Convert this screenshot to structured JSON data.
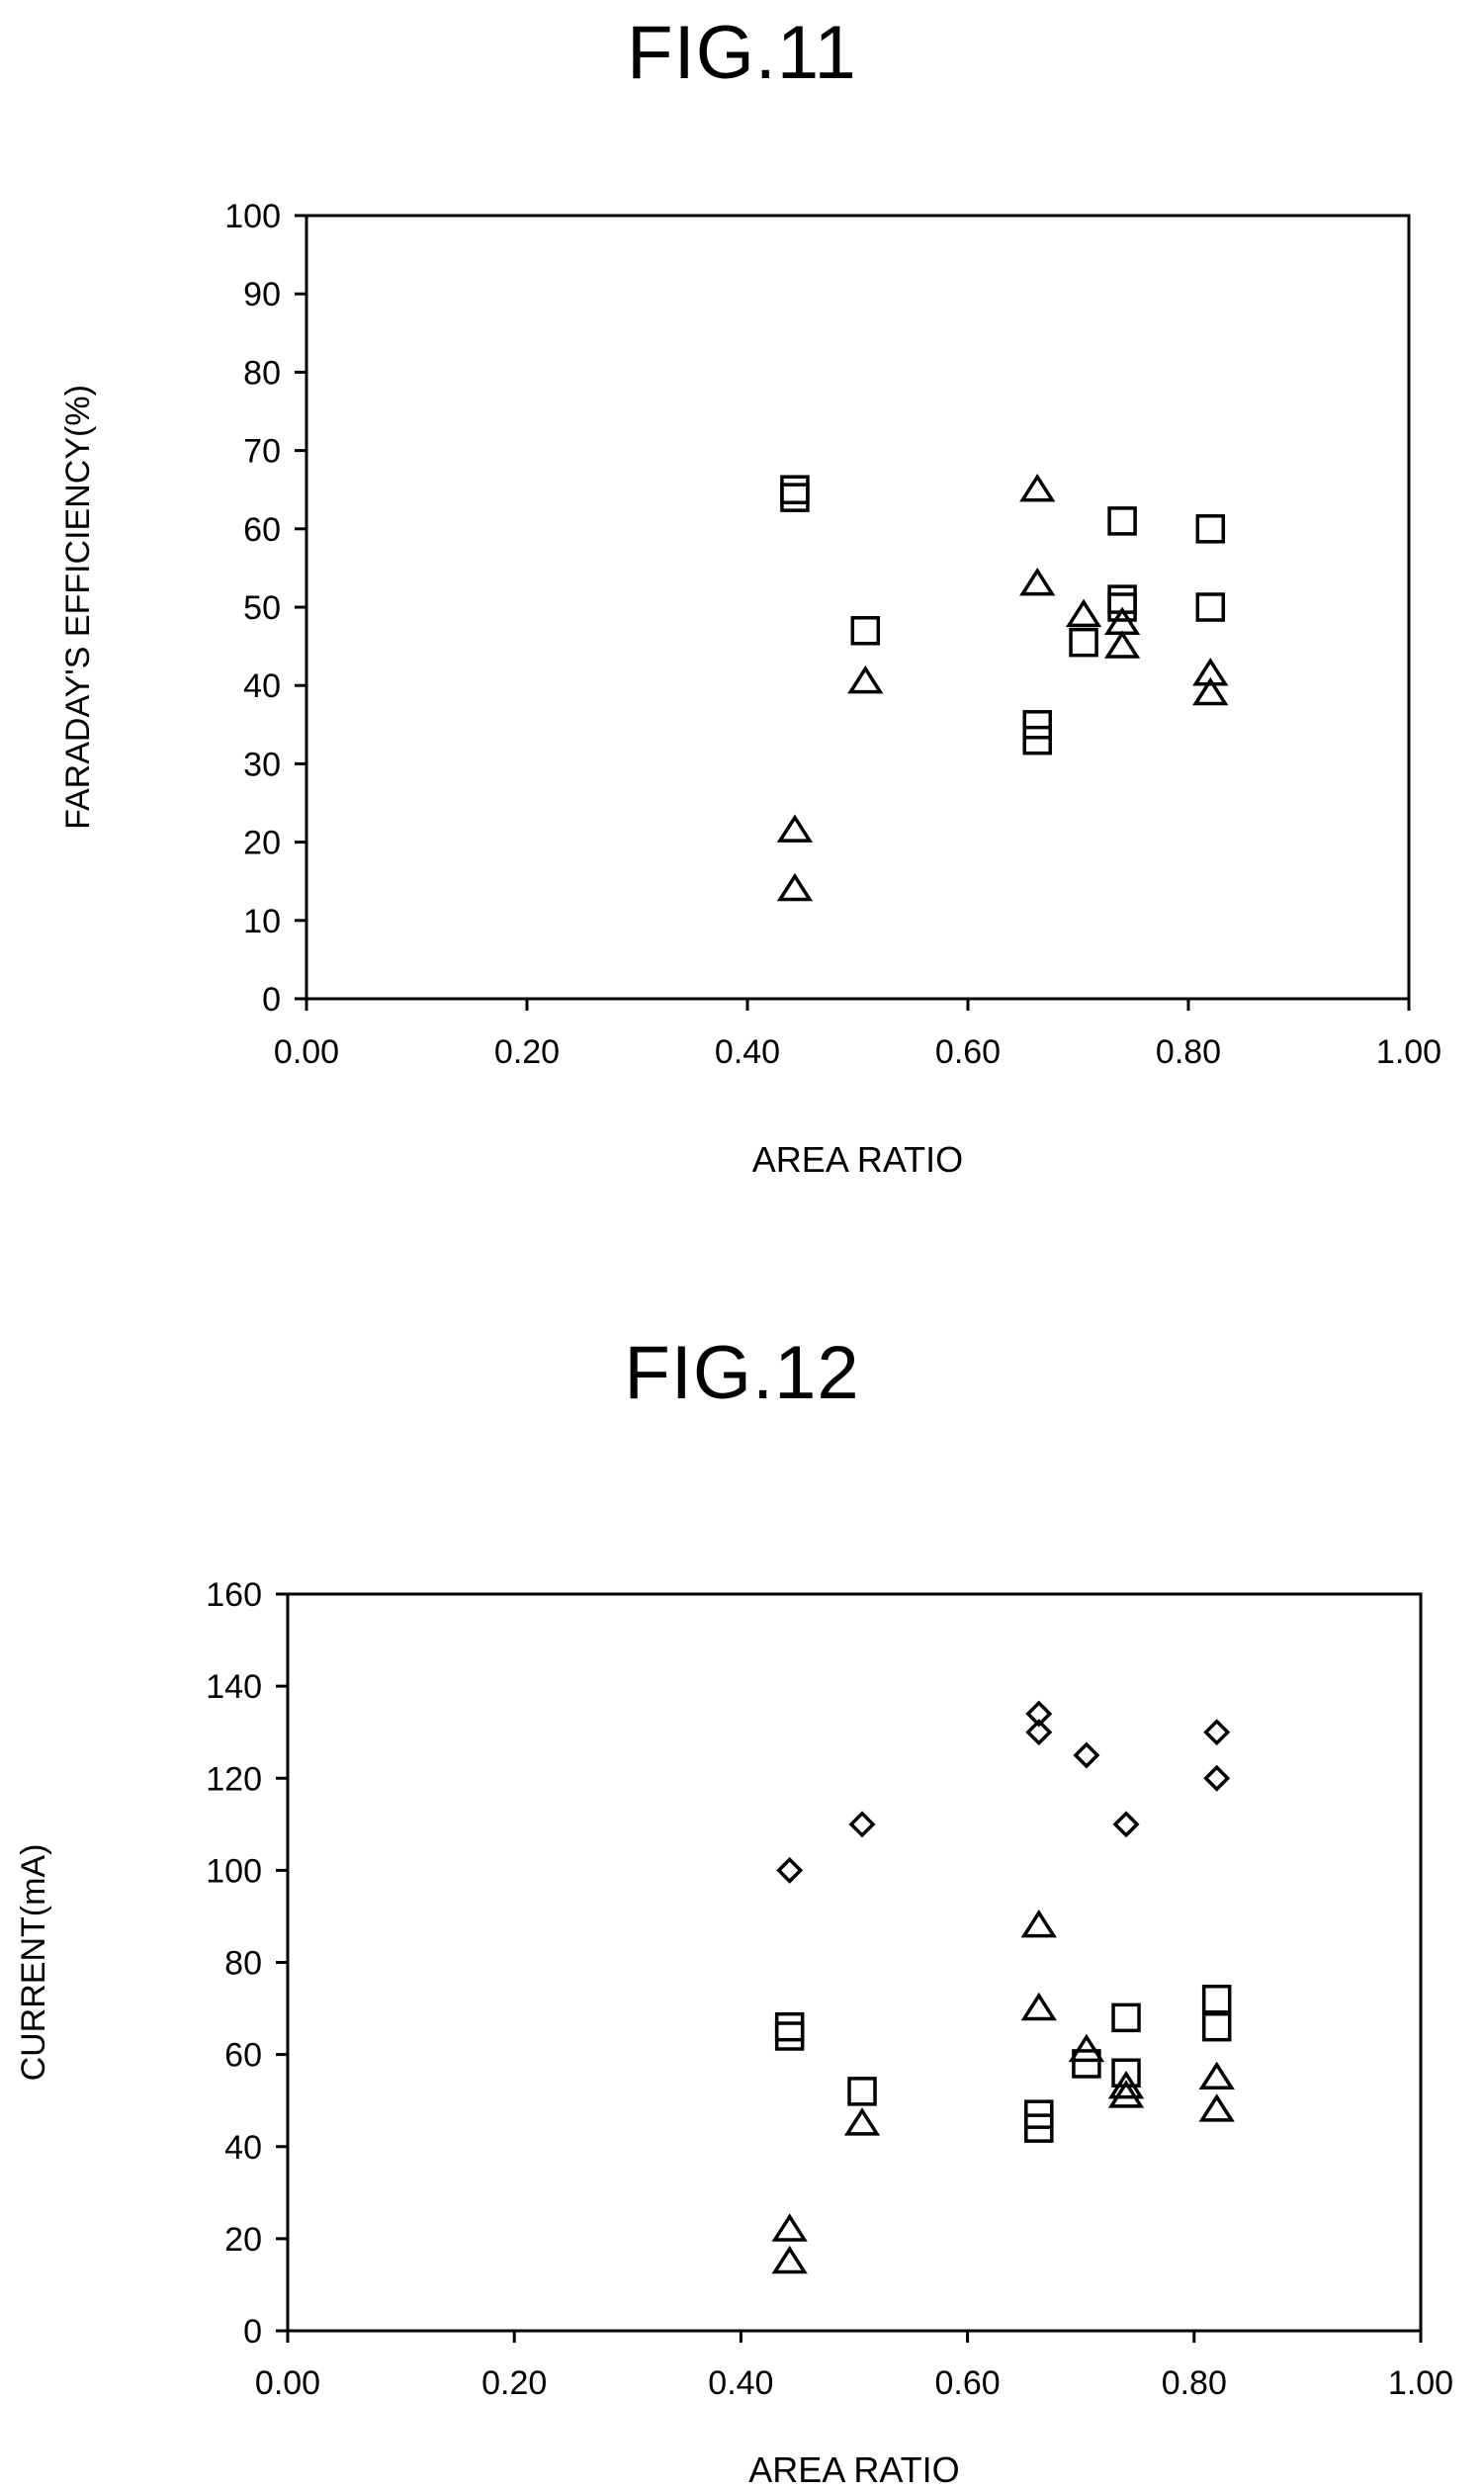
{
  "chart_data": [
    {
      "type": "scatter",
      "title": "FIG.11",
      "xlabel": "AREA RATIO",
      "ylabel": "FARADAY'S EFFICIENCY(%)",
      "xlim": [
        0,
        1
      ],
      "ylim": [
        0,
        100
      ],
      "xticks": [
        "0.00",
        "0.20",
        "0.40",
        "0.60",
        "0.80",
        "1.00"
      ],
      "yticks": [
        "0",
        "10",
        "20",
        "30",
        "40",
        "50",
        "60",
        "70",
        "80",
        "90",
        "100"
      ],
      "grid": false,
      "legend": "none",
      "series": [
        {
          "marker": "square",
          "points": [
            [
              0.443,
              65
            ],
            [
              0.443,
              64
            ],
            [
              0.507,
              47
            ],
            [
              0.663,
              35
            ],
            [
              0.663,
              33
            ],
            [
              0.705,
              45.5
            ],
            [
              0.74,
              61
            ],
            [
              0.74,
              51
            ],
            [
              0.74,
              50
            ],
            [
              0.82,
              60
            ],
            [
              0.82,
              50
            ]
          ]
        },
        {
          "marker": "triangle",
          "points": [
            [
              0.443,
              21.5
            ],
            [
              0.443,
              14
            ],
            [
              0.507,
              40.5
            ],
            [
              0.663,
              65
            ],
            [
              0.663,
              53
            ],
            [
              0.705,
              49
            ],
            [
              0.74,
              48
            ],
            [
              0.74,
              45
            ],
            [
              0.82,
              41.5
            ],
            [
              0.82,
              39
            ]
          ]
        }
      ]
    },
    {
      "type": "scatter",
      "title": "FIG.12",
      "xlabel": "AREA RATIO",
      "ylabel": "CURRENT(mA)",
      "xlim": [
        0,
        1
      ],
      "ylim": [
        0,
        160
      ],
      "xticks": [
        "0.00",
        "0.20",
        "0.40",
        "0.60",
        "0.80",
        "1.00"
      ],
      "yticks": [
        "0",
        "20",
        "40",
        "60",
        "80",
        "100",
        "120",
        "140",
        "160"
      ],
      "grid": false,
      "legend": "none",
      "series": [
        {
          "marker": "diamond",
          "points": [
            [
              0.443,
              100
            ],
            [
              0.507,
              110
            ],
            [
              0.663,
              134
            ],
            [
              0.663,
              130
            ],
            [
              0.705,
              125
            ],
            [
              0.74,
              110
            ],
            [
              0.82,
              130
            ],
            [
              0.82,
              120
            ]
          ]
        },
        {
          "marker": "square",
          "points": [
            [
              0.443,
              66
            ],
            [
              0.443,
              64
            ],
            [
              0.507,
              52
            ],
            [
              0.663,
              47
            ],
            [
              0.663,
              44
            ],
            [
              0.705,
              58
            ],
            [
              0.74,
              68
            ],
            [
              0.74,
              56
            ],
            [
              0.82,
              72
            ],
            [
              0.82,
              66
            ]
          ]
        },
        {
          "marker": "triangle",
          "points": [
            [
              0.443,
              22
            ],
            [
              0.443,
              15
            ],
            [
              0.507,
              45
            ],
            [
              0.663,
              88
            ],
            [
              0.663,
              70
            ],
            [
              0.705,
              61
            ],
            [
              0.74,
              53
            ],
            [
              0.74,
              51
            ],
            [
              0.82,
              55
            ],
            [
              0.82,
              48
            ]
          ]
        }
      ]
    }
  ]
}
